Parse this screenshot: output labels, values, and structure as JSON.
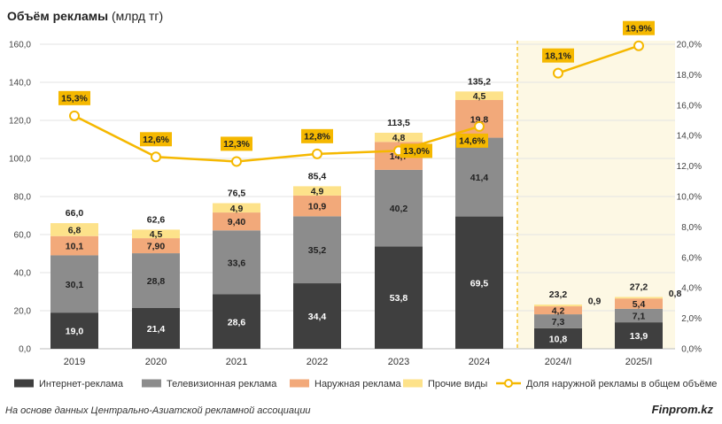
{
  "title": {
    "bold": "Объём рекламы",
    "unit": "(млрд тг)"
  },
  "source": "На основе данных Центрально-Азиатской рекламной ассоциации",
  "brand": "Finprom.kz",
  "colors": {
    "internet": "#3f3f3f",
    "tv": "#8c8c8c",
    "outdoor": "#f2a97a",
    "other": "#fde28a",
    "share_line": "#f5b800",
    "highlight_bg": "#fdf8e4",
    "grid": "#e3e3e3"
  },
  "chart_data": {
    "type": "bar",
    "stacked": true,
    "title": "Объём рекламы (млрд тг)",
    "categories": [
      "2019",
      "2020",
      "2021",
      "2022",
      "2023",
      "2024",
      "2024/I",
      "2025/I"
    ],
    "series": [
      {
        "key": "internet",
        "name": "Интернет-реклама",
        "values": [
          19.0,
          21.4,
          28.6,
          34.4,
          53.8,
          69.5,
          10.8,
          13.9
        ],
        "labels": [
          "19,0",
          "21,4",
          "28,6",
          "34,4",
          "53,8",
          "69,5",
          "10,8",
          "13,9"
        ]
      },
      {
        "key": "tv",
        "name": "Телевизионная реклама",
        "values": [
          30.1,
          28.8,
          33.6,
          35.2,
          40.2,
          41.4,
          7.3,
          7.1
        ],
        "labels": [
          "30,1",
          "28,8",
          "33,6",
          "35,2",
          "40,2",
          "41,4",
          "7,3",
          "7,1"
        ]
      },
      {
        "key": "outdoor",
        "name": "Наружная реклама",
        "values": [
          10.1,
          7.9,
          9.4,
          10.9,
          14.7,
          19.8,
          4.2,
          5.4
        ],
        "labels": [
          "10,1",
          "7,90",
          "9,40",
          "10,9",
          "14,7",
          "19,8",
          "4,2",
          "5,4"
        ]
      },
      {
        "key": "other",
        "name": "Прочие виды",
        "values": [
          6.8,
          4.5,
          4.9,
          4.9,
          4.8,
          4.5,
          0.9,
          0.8
        ],
        "labels": [
          "6,8",
          "4,5",
          "4,9",
          "4,9",
          "4,8",
          "4,5",
          "0,9",
          "0,8"
        ]
      }
    ],
    "totals": [
      "66,0",
      "62,6",
      "76,5",
      "85,4",
      "113,5",
      "135,2",
      "23,2",
      "27,2"
    ],
    "share_line": {
      "name": "Доля наружной рекламы в общем объёме",
      "values": [
        15.3,
        12.6,
        12.3,
        12.8,
        13.0,
        14.6,
        18.1,
        19.9
      ],
      "labels": [
        "15,3%",
        "12,6%",
        "12,3%",
        "12,8%",
        "13,0%",
        "14,6%",
        "18,1%",
        "19,9%"
      ],
      "breaks_after_index": 5
    },
    "y_left": {
      "min": 0,
      "max": 160,
      "step": 20,
      "ticks": [
        "0,0",
        "20,0",
        "40,0",
        "60,0",
        "80,0",
        "100,0",
        "120,0",
        "140,0",
        "160,0"
      ]
    },
    "y_right": {
      "min": 0,
      "max": 20,
      "step": 2,
      "ticks": [
        "0,0%",
        "2,0%",
        "4,0%",
        "6,0%",
        "8,0%",
        "10,0%",
        "12,0%",
        "14,0%",
        "16,0%",
        "18,0%",
        "20,0%"
      ]
    },
    "highlight_categories": [
      "2024/I",
      "2025/I"
    ],
    "legend_position": "bottom"
  }
}
